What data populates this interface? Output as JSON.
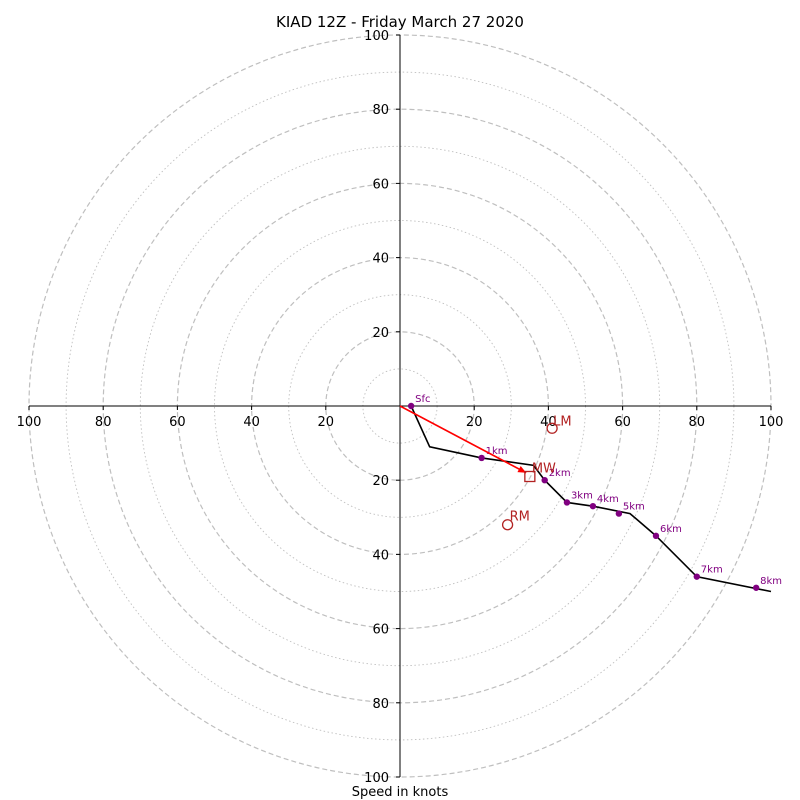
{
  "chart_data": {
    "type": "hodograph",
    "title": "KIAD 12Z - Friday March 27 2020",
    "xlabel": "Speed in knots",
    "max_speed": 100,
    "ring_step_major": 20,
    "ring_step_minor": 10,
    "tick_labels_x": [
      "100",
      "80",
      "60",
      "40",
      "20",
      "20",
      "40",
      "60",
      "80",
      "100"
    ],
    "tick_labels_y": [
      "100",
      "80",
      "60",
      "40",
      "20",
      "20",
      "40",
      "60",
      "80",
      "100"
    ],
    "profile_line": [
      {
        "u": 0,
        "v": 0
      },
      {
        "u": 3,
        "v": 0
      },
      {
        "u": 8,
        "v": -11
      },
      {
        "u": 22,
        "v": -14
      },
      {
        "u": 36,
        "v": -16
      },
      {
        "u": 39,
        "v": -20
      },
      {
        "u": 45,
        "v": -26
      },
      {
        "u": 52,
        "v": -27
      },
      {
        "u": 62,
        "v": -29
      },
      {
        "u": 69,
        "v": -35
      },
      {
        "u": 80,
        "v": -46
      },
      {
        "u": 100,
        "v": -50
      }
    ],
    "height_markers": [
      {
        "label": "Sfc",
        "u": 3,
        "v": 0
      },
      {
        "label": "1km",
        "u": 22,
        "v": -14
      },
      {
        "label": "2km",
        "u": 39,
        "v": -20
      },
      {
        "label": "3km",
        "u": 45,
        "v": -26
      },
      {
        "label": "4km",
        "u": 52,
        "v": -27
      },
      {
        "label": "5km",
        "u": 59,
        "v": -29
      },
      {
        "label": "6km",
        "u": 69,
        "v": -35
      },
      {
        "label": "7km",
        "u": 80,
        "v": -46
      },
      {
        "label": "8km",
        "u": 96,
        "v": -49
      }
    ],
    "storm_motion": {
      "LM": {
        "label": "LM",
        "u": 41,
        "v": -6
      },
      "MW": {
        "label": "MW",
        "u": 35,
        "v": -19
      },
      "RM": {
        "label": "RM",
        "u": 29,
        "v": -32
      },
      "arrow_to": {
        "u": 34,
        "v": -18
      }
    },
    "colors": {
      "profile": "#000000",
      "markers": "#800080",
      "storm_motion": "#b22222",
      "arrow": "#ff0000",
      "grid": "#bfbfbf"
    }
  }
}
